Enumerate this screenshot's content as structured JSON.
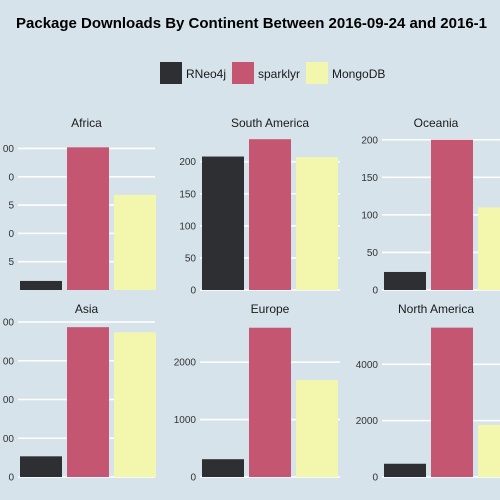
{
  "chart_data": {
    "type": "bar",
    "title": "Package Downloads By Continent Between 2016-09-24 and 2016-1",
    "legend": {
      "position": "top",
      "entries": [
        "RNeo4j",
        "sparklyr",
        "MongoDB"
      ]
    },
    "colors": {
      "background": "#d6e3ea",
      "gridline": "#ffffff",
      "RNeo4j": "#2e2f33",
      "sparklyr": "#c45672",
      "MongoDB": "#f3f7ad"
    },
    "grid": true,
    "facets": [
      {
        "name": "Africa",
        "categories": [
          "RNeo4j",
          "sparklyr",
          "MongoDB"
        ],
        "values": [
          4,
          63,
          42
        ],
        "ylim": [
          0,
          68
        ],
        "ticks": [
          {
            "value": 12.5,
            "label": "5"
          },
          {
            "value": 25,
            "label": "0"
          },
          {
            "value": 37.5,
            "label": "5"
          },
          {
            "value": 50,
            "label": "0"
          },
          {
            "value": 62.5,
            "label": "00"
          }
        ]
      },
      {
        "name": "South America",
        "categories": [
          "RNeo4j",
          "sparklyr",
          "MongoDB"
        ],
        "values": [
          208,
          235,
          207
        ],
        "ylim": [
          0,
          240
        ],
        "ticks": [
          {
            "value": 0,
            "label": "0"
          },
          {
            "value": 50,
            "label": "50"
          },
          {
            "value": 100,
            "label": "100"
          },
          {
            "value": 150,
            "label": "150"
          },
          {
            "value": 200,
            "label": "200"
          }
        ]
      },
      {
        "name": "Oceania",
        "categories": [
          "RNeo4j",
          "sparklyr",
          "MongoDB"
        ],
        "values": [
          24,
          200,
          110
        ],
        "ylim": [
          0,
          205
        ],
        "ticks": [
          {
            "value": 0,
            "label": "0"
          },
          {
            "value": 50,
            "label": "50"
          },
          {
            "value": 100,
            "label": "100"
          },
          {
            "value": 150,
            "label": "150"
          },
          {
            "value": 200,
            "label": "200"
          }
        ]
      },
      {
        "name": "Asia",
        "categories": [
          "RNeo4j",
          "sparklyr",
          "MongoDB"
        ],
        "values": [
          80,
          580,
          560
        ],
        "ylim": [
          0,
          600
        ],
        "ticks": [
          {
            "value": 0,
            "label": "0"
          },
          {
            "value": 150,
            "label": "00"
          },
          {
            "value": 300,
            "label": "00"
          },
          {
            "value": 450,
            "label": "00"
          },
          {
            "value": 600,
            "label": "00"
          }
        ]
      },
      {
        "name": "Europe",
        "categories": [
          "RNeo4j",
          "sparklyr",
          "MongoDB"
        ],
        "values": [
          310,
          2600,
          1690
        ],
        "ylim": [
          0,
          2700
        ],
        "ticks": [
          {
            "value": 0,
            "label": "0"
          },
          {
            "value": 1000,
            "label": "1000"
          },
          {
            "value": 2000,
            "label": "2000"
          }
        ]
      },
      {
        "name": "North America",
        "categories": [
          "RNeo4j",
          "sparklyr",
          "MongoDB"
        ],
        "values": [
          470,
          5300,
          1850
        ],
        "ylim": [
          0,
          5500
        ],
        "ticks": [
          {
            "value": 0,
            "label": "0"
          },
          {
            "value": 2000,
            "label": "2000"
          },
          {
            "value": 4000,
            "label": "4000"
          }
        ]
      }
    ]
  }
}
